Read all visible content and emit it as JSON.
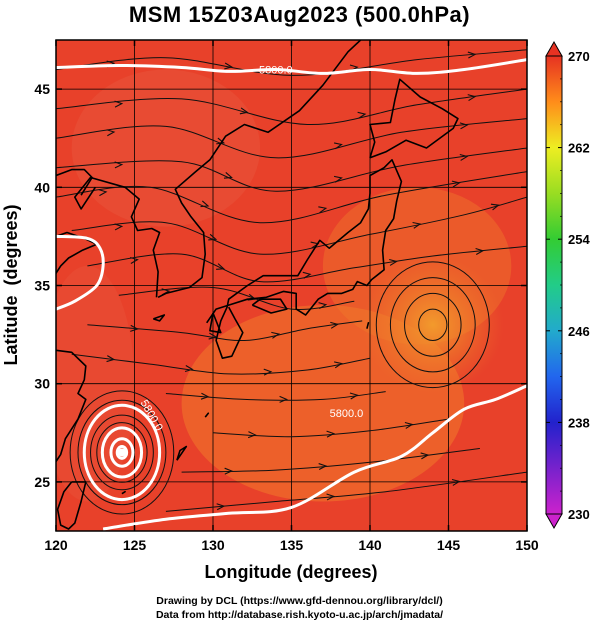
{
  "chart_data": {
    "type": "heatmap",
    "title": "MSM 15Z03Aug2023 (500.0hPa)",
    "xlabel": "Longitude (degrees)",
    "ylabel": "Latitude  (degrees)",
    "xlim": [
      120,
      150
    ],
    "ylim": [
      22.5,
      47.5
    ],
    "x_ticks": [
      "120",
      "125",
      "130",
      "135",
      "140",
      "145",
      "150"
    ],
    "y_ticks": [
      "25",
      "30",
      "35",
      "40",
      "45"
    ],
    "grid": true,
    "colorbar": {
      "range": [
        230,
        270
      ],
      "tick_labels": [
        "270",
        "262",
        "254",
        "246",
        "238",
        "230"
      ],
      "stops": [
        {
          "value": 230,
          "color": "#cc22cc"
        },
        {
          "value": 234,
          "color": "#7722cc"
        },
        {
          "value": 238,
          "color": "#2222cc"
        },
        {
          "value": 242,
          "color": "#2266ee"
        },
        {
          "value": 246,
          "color": "#22aacc"
        },
        {
          "value": 250,
          "color": "#22cc88"
        },
        {
          "value": 254,
          "color": "#33cc33"
        },
        {
          "value": 258,
          "color": "#99dd22"
        },
        {
          "value": 262,
          "color": "#eeee22"
        },
        {
          "value": 266,
          "color": "#ff8c1a"
        },
        {
          "value": 270,
          "color": "#e63222"
        }
      ]
    },
    "field_colors": {
      "background": "#e8412a",
      "warm_patch": "#f07a2a",
      "high_center": "#f29a2c",
      "cool_patch": "#e8553c"
    },
    "high_center": [
      144,
      33
    ],
    "typhoon_center": [
      124.2,
      26.5
    ],
    "contour_labels": [
      "5800.0",
      "5800.0",
      "5800.0"
    ],
    "contours": [
      {
        "label": "5800.0",
        "label_at": [
          138.5,
          28.5
        ],
        "points": [
          [
            123,
            22.6
          ],
          [
            127,
            23.1
          ],
          [
            131,
            23.4
          ],
          [
            135,
            23.7
          ],
          [
            139,
            25.5
          ],
          [
            142,
            26.3
          ],
          [
            144,
            27.5
          ],
          [
            146,
            28.7
          ],
          [
            148,
            29.2
          ],
          [
            150,
            29.9
          ]
        ]
      },
      {
        "label": "5800.0",
        "label_at": [
          134,
          46.0
        ],
        "points": [
          [
            120,
            46.1
          ],
          [
            124,
            46.2
          ],
          [
            128,
            46.1
          ],
          [
            131,
            45.9
          ],
          [
            134,
            46.0
          ],
          [
            137,
            45.8
          ],
          [
            140,
            46.0
          ],
          [
            143,
            45.8
          ],
          [
            146,
            46.0
          ],
          [
            150,
            46.5
          ]
        ]
      },
      {
        "label": "",
        "label_at": null,
        "points": [
          [
            120,
            37.5
          ],
          [
            122,
            37.4
          ],
          [
            122.8,
            36.9
          ],
          [
            123,
            36
          ],
          [
            122.6,
            35
          ],
          [
            121.2,
            34.2
          ],
          [
            120,
            33.8
          ]
        ]
      }
    ],
    "typhoon_rings": [
      {
        "radius_deg": 2.4,
        "label": "5800.0",
        "label_at": [
          125.9,
          28.3
        ]
      },
      {
        "radius_deg": 1.25
      },
      {
        "radius_deg": 0.7
      },
      {
        "radius_deg": 0.3
      }
    ],
    "wind_lines": [
      [
        [
          120,
          46
        ],
        [
          127,
          46.6
        ],
        [
          135,
          45.7
        ],
        [
          143,
          46.5
        ],
        [
          150,
          47
        ]
      ],
      [
        [
          120,
          44
        ],
        [
          128,
          44.5
        ],
        [
          136,
          43.2
        ],
        [
          143,
          44.2
        ],
        [
          150,
          45
        ]
      ],
      [
        [
          120,
          42.5
        ],
        [
          127,
          43.1
        ],
        [
          134,
          41.5
        ],
        [
          142,
          42.8
        ],
        [
          150,
          43.5
        ]
      ],
      [
        [
          120,
          41
        ],
        [
          128,
          41.3
        ],
        [
          134,
          39.8
        ],
        [
          142,
          41.1
        ],
        [
          150,
          42
        ]
      ],
      [
        [
          120,
          39.5
        ],
        [
          126,
          40
        ],
        [
          133,
          38.2
        ],
        [
          141,
          39.6
        ],
        [
          150,
          40.8
        ]
      ],
      [
        [
          121,
          37.8
        ],
        [
          127,
          38.2
        ],
        [
          133,
          36.6
        ],
        [
          140,
          37.6
        ],
        [
          146,
          38.6
        ],
        [
          150,
          39.5
        ]
      ],
      [
        [
          122,
          36
        ],
        [
          128,
          36.6
        ],
        [
          133,
          35.2
        ],
        [
          139,
          35.9
        ],
        [
          144,
          36.5
        ],
        [
          150,
          37
        ]
      ],
      [
        [
          124,
          34.5
        ],
        [
          130,
          34.9
        ],
        [
          135,
          33.8
        ],
        [
          139,
          34.2
        ]
      ],
      [
        [
          122,
          33
        ],
        [
          128,
          32.6
        ],
        [
          132,
          32.2
        ],
        [
          136,
          32.8
        ],
        [
          139.5,
          33.2
        ]
      ],
      [
        [
          121,
          31.5
        ],
        [
          126,
          31
        ],
        [
          131,
          30.5
        ],
        [
          136,
          30.7
        ],
        [
          140,
          31.3
        ]
      ],
      [
        [
          127,
          29.5
        ],
        [
          132,
          29.2
        ],
        [
          137,
          29.2
        ],
        [
          141,
          29.6
        ]
      ],
      [
        [
          130,
          27.5
        ],
        [
          135,
          27.3
        ],
        [
          140,
          27.6
        ],
        [
          145,
          28.2
        ]
      ],
      [
        [
          128,
          25.5
        ],
        [
          134,
          25.6
        ],
        [
          140,
          26
        ],
        [
          147,
          26.7
        ]
      ],
      [
        [
          127,
          23.5
        ],
        [
          134,
          24
        ],
        [
          141,
          24.5
        ],
        [
          150,
          25.5
        ]
      ]
    ],
    "coastlines": [
      [
        [
          129.6,
          33.1
        ],
        [
          130.2,
          33.8
        ],
        [
          131.0,
          34.0
        ],
        [
          132.2,
          34.3
        ],
        [
          133.4,
          34.4
        ],
        [
          134.5,
          34.7
        ],
        [
          135.3,
          34.6
        ],
        [
          135.3,
          33.8
        ],
        [
          135.9,
          33.5
        ],
        [
          136.7,
          34.3
        ],
        [
          137.3,
          34.6
        ],
        [
          138.2,
          34.6
        ],
        [
          138.9,
          34.8
        ],
        [
          139.2,
          35.2
        ],
        [
          139.8,
          35.0
        ],
        [
          140.1,
          35.3
        ],
        [
          140.9,
          35.8
        ],
        [
          140.8,
          36.8
        ],
        [
          141.0,
          37.8
        ],
        [
          141.5,
          38.4
        ],
        [
          141.7,
          39.3
        ],
        [
          142.0,
          40.3
        ],
        [
          141.4,
          41.4
        ],
        [
          140.9,
          41.0
        ],
        [
          140.0,
          40.6
        ],
        [
          140.0,
          39.7
        ],
        [
          139.9,
          38.9
        ],
        [
          139.4,
          38.2
        ],
        [
          138.6,
          37.7
        ],
        [
          137.4,
          36.9
        ],
        [
          136.8,
          37.3
        ],
        [
          136.0,
          36.3
        ],
        [
          135.4,
          35.5
        ],
        [
          133.2,
          35.5
        ],
        [
          132.2,
          35.0
        ],
        [
          131.0,
          34.3
        ],
        [
          130.9,
          33.9
        ],
        [
          130.5,
          33.2
        ],
        [
          130.2,
          32.2
        ],
        [
          130.6,
          31.3
        ],
        [
          131.2,
          31.4
        ],
        [
          131.9,
          32.6
        ],
        [
          131.4,
          33.3
        ],
        [
          131.0,
          33.9
        ]
      ],
      [
        [
          132.5,
          34.0
        ],
        [
          133.7,
          33.6
        ],
        [
          134.7,
          33.8
        ],
        [
          134.3,
          34.3
        ],
        [
          133.0,
          34.3
        ],
        [
          132.5,
          34.0
        ]
      ],
      [
        [
          140.0,
          41.5
        ],
        [
          140.3,
          42.3
        ],
        [
          140.0,
          43.2
        ],
        [
          141.3,
          43.3
        ],
        [
          141.6,
          44.5
        ],
        [
          141.9,
          45.5
        ],
        [
          143.2,
          44.6
        ],
        [
          144.6,
          44.0
        ],
        [
          145.6,
          43.5
        ],
        [
          145.3,
          43.0
        ],
        [
          143.6,
          42.0
        ],
        [
          142.3,
          42.4
        ],
        [
          141.0,
          41.8
        ],
        [
          140.0,
          41.5
        ]
      ],
      [
        [
          130.0,
          33.6
        ],
        [
          130.5,
          32.6
        ],
        [
          129.8,
          32.7
        ],
        [
          130.0,
          33.6
        ]
      ],
      [
        [
          126.4,
          34.4
        ],
        [
          126.5,
          35.7
        ],
        [
          126.2,
          36.8
        ],
        [
          126.6,
          37.7
        ],
        [
          126.1,
          37.9
        ],
        [
          125.2,
          37.8
        ],
        [
          124.8,
          38.5
        ],
        [
          125.3,
          39.4
        ],
        [
          124.4,
          40.0
        ],
        [
          122.2,
          40.5
        ],
        [
          121.2,
          39.5
        ],
        [
          121.6,
          38.9
        ],
        [
          122.5,
          40.0
        ]
      ],
      [
        [
          127.0,
          34.6
        ],
        [
          128.5,
          34.9
        ],
        [
          129.3,
          35.4
        ],
        [
          129.5,
          36.6
        ],
        [
          129.4,
          37.7
        ],
        [
          128.6,
          38.5
        ],
        [
          128.0,
          39.2
        ],
        [
          127.6,
          39.9
        ],
        [
          128.9,
          40.8
        ],
        [
          129.8,
          41.4
        ],
        [
          130.8,
          42.6
        ],
        [
          132.0,
          43.2
        ],
        [
          133.5,
          42.8
        ],
        [
          135.5,
          43.9
        ],
        [
          137.0,
          45.2
        ],
        [
          138.6,
          46.9
        ],
        [
          139.4,
          47.5
        ]
      ],
      [
        [
          126.5,
          34.4
        ],
        [
          127.0,
          34.6
        ]
      ],
      [
        [
          120.0,
          37.5
        ],
        [
          120.7,
          37.7
        ],
        [
          121.8,
          37.4
        ],
        [
          122.6,
          37.1
        ],
        [
          121.7,
          36.8
        ],
        [
          120.8,
          36.4
        ],
        [
          120.3,
          36.0
        ],
        [
          119.9,
          35.5
        ]
      ],
      [
        [
          120.0,
          40.6
        ],
        [
          121.0,
          40.9
        ],
        [
          121.8,
          40.9
        ],
        [
          122.3,
          40.5
        ],
        [
          121.6,
          39.6
        ]
      ],
      [
        [
          120.0,
          31.7
        ],
        [
          121.0,
          31.6
        ],
        [
          121.9,
          30.9
        ],
        [
          121.8,
          30.2
        ],
        [
          121.4,
          29.5
        ],
        [
          121.9,
          29.2
        ],
        [
          121.4,
          28.2
        ],
        [
          120.6,
          27.2
        ],
        [
          120.3,
          26.4
        ],
        [
          119.8,
          25.8
        ]
      ],
      [
        [
          121.0,
          25.0
        ],
        [
          121.9,
          25.0
        ],
        [
          121.6,
          24.0
        ],
        [
          121.2,
          22.9
        ],
        [
          120.8,
          22.6
        ],
        [
          120.3,
          22.8
        ],
        [
          120.1,
          23.6
        ],
        [
          120.5,
          24.5
        ],
        [
          121.0,
          25.0
        ]
      ],
      [
        [
          126.2,
          33.3
        ],
        [
          126.9,
          33.5
        ],
        [
          126.6,
          33.2
        ],
        [
          126.2,
          33.3
        ]
      ],
      [
        [
          127.7,
          26.1
        ],
        [
          128.3,
          26.8
        ],
        [
          127.9,
          26.6
        ],
        [
          127.7,
          26.1
        ]
      ],
      [
        [
          124.2,
          24.4
        ],
        [
          124.4,
          24.5
        ],
        [
          124.2,
          24.4
        ]
      ],
      [
        [
          129.5,
          28.3
        ],
        [
          129.7,
          28.5
        ],
        [
          129.5,
          28.3
        ]
      ],
      [
        [
          139.8,
          32.8
        ],
        [
          139.9,
          33.1
        ],
        [
          139.8,
          32.8
        ]
      ]
    ]
  },
  "footer": {
    "line1": "Drawing by DCL (https://www.gfd-dennou.org/library/dcl/)",
    "line2": "Data from http://database.rish.kyoto-u.ac.jp/arch/jmadata/"
  }
}
